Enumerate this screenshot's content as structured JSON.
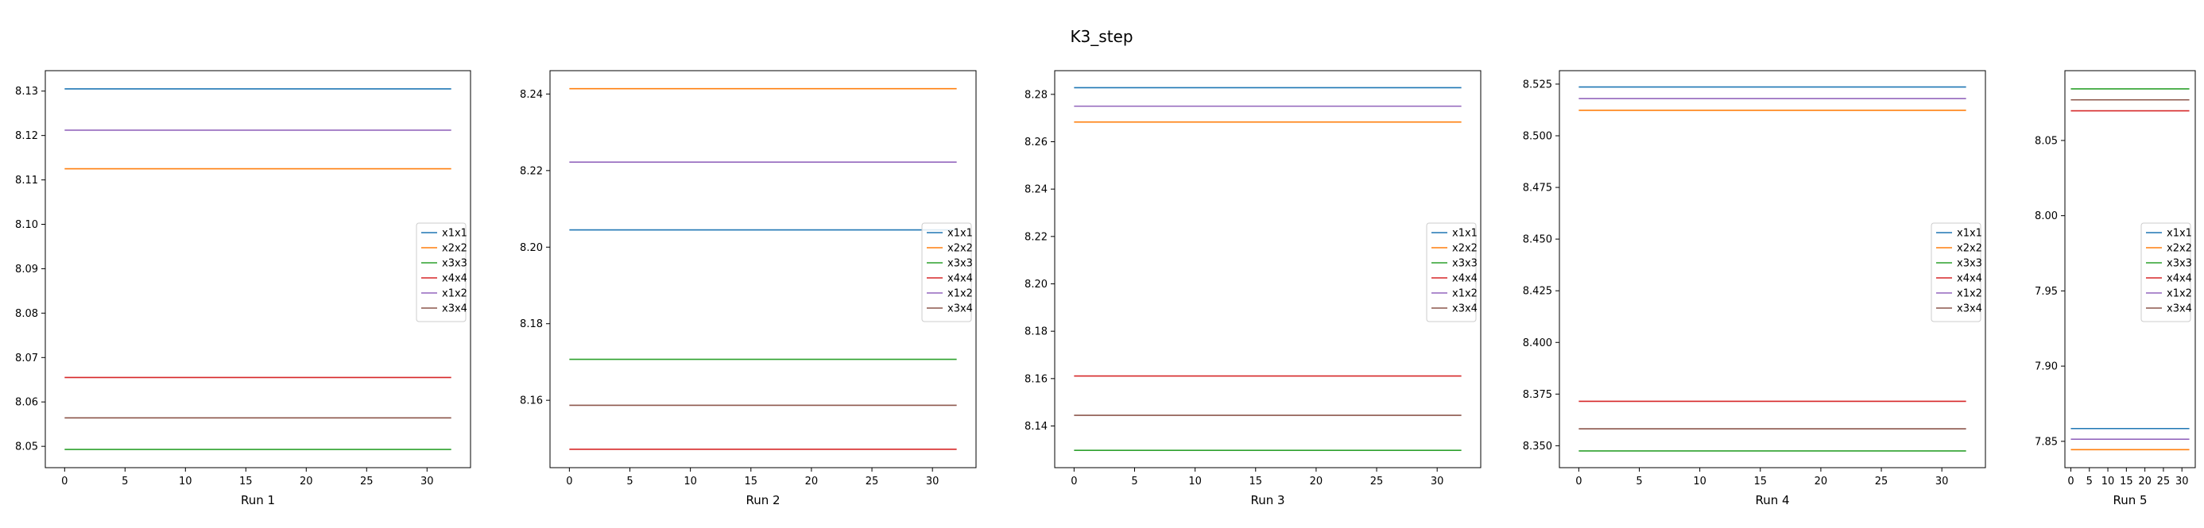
{
  "title": "K3_step",
  "colors": {
    "x1x1": "#1f77b4",
    "x2x2": "#ff7f0e",
    "x3x3": "#2ca02c",
    "x4x4": "#d62728",
    "x1x2": "#9467bd",
    "x3x4": "#8c564b"
  },
  "chart_data": [
    {
      "type": "line",
      "xlabel": "Run 1",
      "xlim": [
        -1.6,
        33.6
      ],
      "xticks": [
        0,
        5,
        10,
        15,
        20,
        25,
        30
      ],
      "x_range": [
        0,
        32
      ],
      "ylim": [
        8.0452,
        8.1346
      ],
      "yticks": [
        8.05,
        8.06,
        8.07,
        8.08,
        8.09,
        8.1,
        8.11,
        8.12,
        8.13
      ],
      "yticklabels": [
        "8.05",
        "8.06",
        "8.07",
        "8.08",
        "8.09",
        "8.10",
        "8.11",
        "8.12",
        "8.13"
      ],
      "legend_position": "center-right",
      "series": [
        {
          "name": "x1x1",
          "value": 8.1305
        },
        {
          "name": "x2x2",
          "value": 8.1125
        },
        {
          "name": "x3x3",
          "value": 8.0493
        },
        {
          "name": "x4x4",
          "value": 8.0655
        },
        {
          "name": "x1x2",
          "value": 8.1212
        },
        {
          "name": "x3x4",
          "value": 8.0564
        }
      ]
    },
    {
      "type": "line",
      "xlabel": "Run 2",
      "xlim": [
        -1.6,
        33.6
      ],
      "xticks": [
        0,
        5,
        10,
        15,
        20,
        25,
        30
      ],
      "x_range": [
        0,
        32
      ],
      "ylim": [
        8.1424,
        8.2461
      ],
      "yticks": [
        8.16,
        8.18,
        8.2,
        8.22,
        8.24
      ],
      "yticklabels": [
        "8.16",
        "8.18",
        "8.20",
        "8.22",
        "8.24"
      ],
      "legend_position": "center-right",
      "series": [
        {
          "name": "x1x1",
          "value": 8.2045
        },
        {
          "name": "x2x2",
          "value": 8.2414
        },
        {
          "name": "x3x3",
          "value": 8.1707
        },
        {
          "name": "x4x4",
          "value": 8.1472
        },
        {
          "name": "x1x2",
          "value": 8.2222
        },
        {
          "name": "x3x4",
          "value": 8.1587
        }
      ]
    },
    {
      "type": "line",
      "xlabel": "Run 3",
      "xlim": [
        -1.6,
        33.6
      ],
      "xticks": [
        0,
        5,
        10,
        15,
        20,
        25,
        30
      ],
      "x_range": [
        0,
        32
      ],
      "ylim": [
        8.1224,
        8.29
      ],
      "yticks": [
        8.14,
        8.16,
        8.18,
        8.2,
        8.22,
        8.24,
        8.26,
        8.28
      ],
      "yticklabels": [
        "8.14",
        "8.16",
        "8.18",
        "8.20",
        "8.22",
        "8.24",
        "8.26",
        "8.28"
      ],
      "legend_position": "center-right",
      "series": [
        {
          "name": "x1x1",
          "value": 8.2828
        },
        {
          "name": "x2x2",
          "value": 8.2683
        },
        {
          "name": "x3x3",
          "value": 8.1297
        },
        {
          "name": "x4x4",
          "value": 8.1611
        },
        {
          "name": "x1x2",
          "value": 8.275
        },
        {
          "name": "x3x4",
          "value": 8.1445
        }
      ]
    },
    {
      "type": "line",
      "xlabel": "Run 4",
      "xlim": [
        -1.6,
        33.6
      ],
      "xticks": [
        0,
        5,
        10,
        15,
        20,
        25,
        30
      ],
      "x_range": [
        0,
        32
      ],
      "ylim": [
        8.3394,
        8.5315
      ],
      "yticks": [
        8.35,
        8.375,
        8.4,
        8.425,
        8.45,
        8.475,
        8.5,
        8.525
      ],
      "yticklabels": [
        "8.350",
        "8.375",
        "8.400",
        "8.425",
        "8.450",
        "8.475",
        "8.500",
        "8.525"
      ],
      "legend_position": "center-right",
      "series": [
        {
          "name": "x1x1",
          "value": 8.5236
        },
        {
          "name": "x2x2",
          "value": 8.5123
        },
        {
          "name": "x3x3",
          "value": 8.3475
        },
        {
          "name": "x4x4",
          "value": 8.3715
        },
        {
          "name": "x1x2",
          "value": 8.518
        },
        {
          "name": "x3x4",
          "value": 8.3582
        }
      ]
    },
    {
      "type": "line",
      "xlabel": "Run 5",
      "xlim": [
        -1.6,
        33.6
      ],
      "xticks": [
        0,
        5,
        10,
        15,
        20,
        25,
        30
      ],
      "x_range": [
        0,
        32
      ],
      "ylim": [
        7.8325,
        8.0964
      ],
      "yticks": [
        7.85,
        7.9,
        7.95,
        8.0,
        8.05
      ],
      "yticklabels": [
        "7.85",
        "7.90",
        "7.95",
        "8.00",
        "8.05"
      ],
      "legend_position": "center-right",
      "series": [
        {
          "name": "x1x1",
          "value": 7.8585
        },
        {
          "name": "x2x2",
          "value": 7.8445
        },
        {
          "name": "x3x3",
          "value": 8.0843
        },
        {
          "name": "x4x4",
          "value": 8.0697
        },
        {
          "name": "x1x2",
          "value": 7.8514
        },
        {
          "name": "x3x4",
          "value": 8.077
        }
      ]
    }
  ]
}
